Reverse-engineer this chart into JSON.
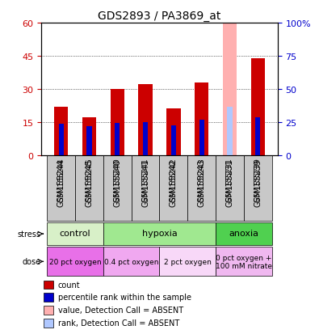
{
  "title": "GDS2893 / PA3869_at",
  "samples": [
    "GSM155244",
    "GSM155245",
    "GSM155240",
    "GSM155241",
    "GSM155242",
    "GSM155243",
    "GSM155231",
    "GSM155239"
  ],
  "count_values": [
    22,
    17,
    30,
    32,
    21,
    33,
    0,
    44
  ],
  "rank_values": [
    14,
    13,
    14.5,
    15,
    13.5,
    16,
    0,
    17
  ],
  "absent_value_bar": [
    0,
    0,
    0,
    0,
    0,
    0,
    60,
    0
  ],
  "absent_rank_bar": [
    0,
    0,
    0,
    0,
    0,
    0,
    22,
    0
  ],
  "detection_absent": [
    false,
    false,
    false,
    false,
    false,
    false,
    true,
    false
  ],
  "ylim_left": [
    0,
    60
  ],
  "ylim_right": [
    0,
    100
  ],
  "yticks_left": [
    0,
    15,
    30,
    45,
    60
  ],
  "ytick_labels_left": [
    "0",
    "15",
    "30",
    "45",
    "60"
  ],
  "ytick_labels_right": [
    "0",
    "25",
    "50",
    "75",
    "100%"
  ],
  "stress_groups": [
    {
      "label": "control",
      "start": 0,
      "end": 2,
      "color": "#d8f0c8"
    },
    {
      "label": "hypoxia",
      "start": 2,
      "end": 6,
      "color": "#a0e890"
    },
    {
      "label": "anoxia",
      "start": 6,
      "end": 8,
      "color": "#50d050"
    }
  ],
  "dose_groups": [
    {
      "label": "20 pct oxygen",
      "start": 0,
      "end": 2,
      "color": "#e870e8"
    },
    {
      "label": "0.4 pct oxygen",
      "start": 2,
      "end": 4,
      "color": "#f0a8f0"
    },
    {
      "label": "2 pct oxygen",
      "start": 4,
      "end": 6,
      "color": "#f8d8f8"
    },
    {
      "label": "0 pct oxygen +\n100 mM nitrate",
      "start": 6,
      "end": 8,
      "color": "#f0b8f0"
    }
  ],
  "bar_width": 0.5,
  "count_color": "#cc0000",
  "rank_color": "#0000cc",
  "absent_value_color": "#ffb0b0",
  "absent_rank_color": "#b0c8ff",
  "sample_label_color": "#000000",
  "left_axis_color": "#cc0000",
  "right_axis_color": "#0000cc",
  "grid_color": "#000000",
  "legend_items": [
    {
      "color": "#cc0000",
      "label": "count"
    },
    {
      "color": "#0000cc",
      "label": "percentile rank within the sample"
    },
    {
      "color": "#ffb0b0",
      "label": "value, Detection Call = ABSENT"
    },
    {
      "color": "#b0c8ff",
      "label": "rank, Detection Call = ABSENT"
    }
  ]
}
